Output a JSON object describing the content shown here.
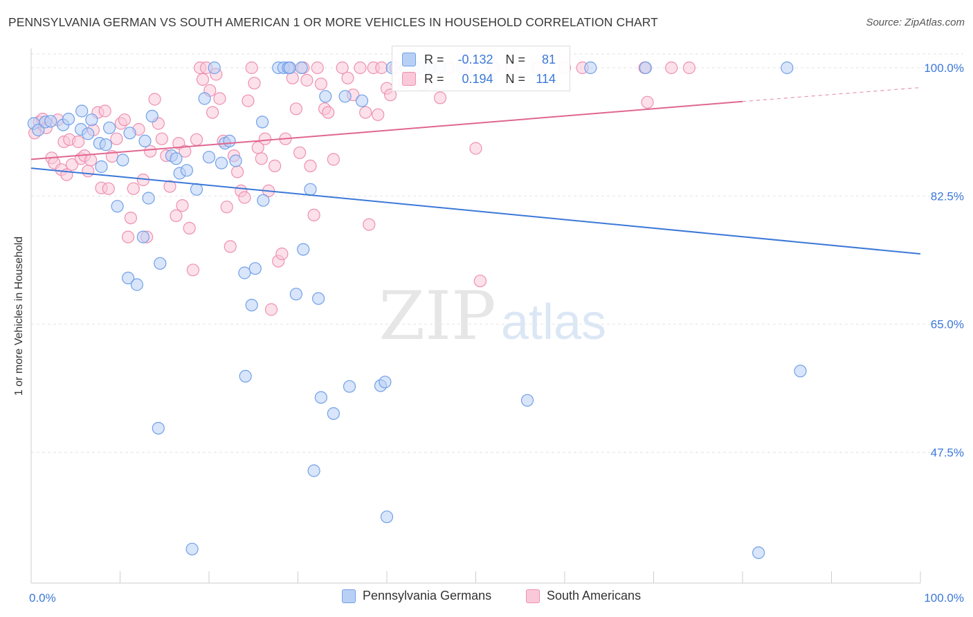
{
  "title": "PENNSYLVANIA GERMAN VS SOUTH AMERICAN 1 OR MORE VEHICLES IN HOUSEHOLD CORRELATION CHART",
  "source": "Source: ZipAtlas.com",
  "watermark": {
    "zip": "ZIP",
    "atlas": "atlas"
  },
  "stats": [
    {
      "r_label": "R =",
      "r_value": "-0.132",
      "n_label": "N =",
      "n_value": "81",
      "color": "#6fa0e8",
      "fill": "#b9d0f5"
    },
    {
      "r_label": "R =",
      "r_value": "0.194",
      "n_label": "N =",
      "n_value": "114",
      "color": "#ee8fb0",
      "fill": "#f9c9d9"
    }
  ],
  "chart_data": {
    "type": "scatter",
    "title": "PENNSYLVANIA GERMAN VS SOUTH AMERICAN 1 OR MORE VEHICLES IN HOUSEHOLD CORRELATION CHART",
    "xlabel": "",
    "ylabel": "1 or more Vehicles in Household",
    "xlim": [
      0,
      100
    ],
    "ylim": [
      30,
      101.5
    ],
    "x_tick_labels": [
      "0.0%",
      "100.0%"
    ],
    "y_ticks": [
      47.5,
      65.0,
      82.5,
      100.0
    ],
    "y_tick_labels": [
      "47.5%",
      "65.0%",
      "82.5%",
      "100.0%"
    ],
    "grid": true,
    "legend_position": "bottom",
    "series": [
      {
        "name": "Pennsylvania Germans",
        "color": "#6fa0e8",
        "fill": "#b9d0f5",
        "trend": {
          "x": [
            0,
            100
          ],
          "y": [
            86.3,
            74.6
          ]
        },
        "points": [
          [
            0.3,
            92.4
          ],
          [
            0.8,
            91.5
          ],
          [
            1.6,
            92.6
          ],
          [
            2.2,
            92.7
          ],
          [
            3.6,
            92.2
          ],
          [
            4.2,
            93.0
          ],
          [
            5.6,
            91.6
          ],
          [
            5.7,
            94.1
          ],
          [
            6.4,
            91.0
          ],
          [
            6.8,
            92.9
          ],
          [
            7.7,
            89.7
          ],
          [
            7.9,
            86.5
          ],
          [
            8.4,
            89.5
          ],
          [
            8.8,
            91.8
          ],
          [
            9.7,
            81.1
          ],
          [
            10.3,
            87.4
          ],
          [
            10.9,
            71.3
          ],
          [
            11.1,
            91.1
          ],
          [
            11.9,
            70.4
          ],
          [
            12.6,
            76.9
          ],
          [
            12.8,
            90.0
          ],
          [
            13.2,
            82.2
          ],
          [
            13.6,
            93.4
          ],
          [
            14.3,
            50.8
          ],
          [
            14.5,
            73.3
          ],
          [
            15.8,
            88.0
          ],
          [
            16.3,
            87.6
          ],
          [
            16.7,
            85.6
          ],
          [
            17.5,
            86.0
          ],
          [
            18.1,
            34.3
          ],
          [
            18.6,
            83.4
          ],
          [
            19.5,
            95.8
          ],
          [
            20.0,
            87.8
          ],
          [
            20.6,
            100.0
          ],
          [
            21.4,
            87.0
          ],
          [
            21.8,
            89.7
          ],
          [
            22.3,
            90.0
          ],
          [
            23.0,
            87.3
          ],
          [
            24.0,
            72.0
          ],
          [
            24.1,
            57.9
          ],
          [
            24.8,
            67.6
          ],
          [
            25.2,
            72.6
          ],
          [
            26.0,
            92.6
          ],
          [
            26.1,
            81.9
          ],
          [
            27.8,
            100.0
          ],
          [
            28.4,
            100.0
          ],
          [
            28.9,
            100.0
          ],
          [
            29.1,
            100.0
          ],
          [
            29.8,
            69.1
          ],
          [
            30.4,
            100.0
          ],
          [
            30.6,
            75.2
          ],
          [
            31.4,
            83.4
          ],
          [
            31.8,
            45.0
          ],
          [
            32.3,
            68.5
          ],
          [
            32.6,
            55.0
          ],
          [
            33.1,
            96.1
          ],
          [
            34.0,
            52.8
          ],
          [
            35.3,
            96.1
          ],
          [
            35.8,
            56.5
          ],
          [
            37.2,
            95.5
          ],
          [
            39.3,
            56.6
          ],
          [
            39.8,
            57.1
          ],
          [
            40.0,
            38.7
          ],
          [
            40.6,
            100.0
          ],
          [
            42.1,
            100.0
          ],
          [
            43.6,
            100.0
          ],
          [
            44.8,
            100.0
          ],
          [
            46.0,
            100.0
          ],
          [
            48.5,
            100.0
          ],
          [
            55.8,
            54.6
          ],
          [
            62.9,
            100.0
          ],
          [
            69.1,
            100.0
          ],
          [
            81.8,
            33.8
          ],
          [
            85.0,
            100.0
          ],
          [
            86.5,
            58.6
          ]
        ]
      },
      {
        "name": "South Americans",
        "color": "#ee8fb0",
        "fill": "#f9c9d9",
        "trend": {
          "x": [
            0,
            80
          ],
          "y": [
            87.5,
            95.4
          ]
        },
        "trend_dashed": {
          "x": [
            80,
            100
          ],
          "y": [
            95.4,
            97.3
          ]
        },
        "points": [
          [
            0.4,
            91.1
          ],
          [
            0.9,
            92.6
          ],
          [
            1.3,
            93.0
          ],
          [
            1.7,
            91.8
          ],
          [
            2.3,
            87.7
          ],
          [
            2.6,
            87.0
          ],
          [
            3.0,
            92.9
          ],
          [
            3.4,
            86.1
          ],
          [
            3.7,
            89.9
          ],
          [
            4.0,
            85.4
          ],
          [
            4.3,
            90.2
          ],
          [
            4.6,
            86.8
          ],
          [
            5.3,
            89.9
          ],
          [
            5.6,
            87.6
          ],
          [
            6.0,
            88.0
          ],
          [
            6.4,
            85.9
          ],
          [
            6.7,
            87.4
          ],
          [
            7.0,
            91.5
          ],
          [
            7.5,
            93.9
          ],
          [
            7.9,
            83.6
          ],
          [
            8.3,
            94.1
          ],
          [
            8.7,
            83.5
          ],
          [
            9.1,
            87.9
          ],
          [
            9.6,
            90.3
          ],
          [
            10.1,
            92.4
          ],
          [
            10.5,
            92.9
          ],
          [
            10.9,
            76.9
          ],
          [
            11.2,
            79.5
          ],
          [
            11.5,
            83.5
          ],
          [
            12.1,
            91.6
          ],
          [
            12.6,
            84.7
          ],
          [
            13.0,
            76.9
          ],
          [
            13.4,
            88.6
          ],
          [
            13.9,
            95.7
          ],
          [
            14.3,
            92.4
          ],
          [
            14.7,
            90.3
          ],
          [
            15.2,
            88.0
          ],
          [
            15.6,
            83.8
          ],
          [
            16.3,
            79.8
          ],
          [
            16.6,
            89.7
          ],
          [
            17.0,
            81.2
          ],
          [
            17.3,
            88.6
          ],
          [
            17.8,
            78.1
          ],
          [
            18.2,
            72.4
          ],
          [
            18.6,
            90.2
          ],
          [
            19.0,
            100.0
          ],
          [
            19.3,
            98.4
          ],
          [
            19.7,
            100.0
          ],
          [
            20.1,
            96.9
          ],
          [
            20.4,
            93.9
          ],
          [
            20.8,
            99.1
          ],
          [
            21.2,
            95.8
          ],
          [
            21.6,
            90.0
          ],
          [
            22.0,
            81.0
          ],
          [
            22.4,
            75.6
          ],
          [
            22.8,
            88.0
          ],
          [
            23.2,
            85.8
          ],
          [
            23.6,
            83.2
          ],
          [
            24.0,
            82.3
          ],
          [
            24.4,
            95.5
          ],
          [
            24.8,
            100.0
          ],
          [
            25.1,
            97.9
          ],
          [
            25.5,
            89.1
          ],
          [
            25.9,
            87.6
          ],
          [
            26.3,
            90.3
          ],
          [
            26.7,
            83.2
          ],
          [
            27.0,
            67.0
          ],
          [
            27.4,
            86.6
          ],
          [
            27.8,
            73.6
          ],
          [
            28.2,
            74.6
          ],
          [
            28.6,
            90.3
          ],
          [
            29.0,
            100.0
          ],
          [
            29.4,
            98.6
          ],
          [
            29.8,
            94.4
          ],
          [
            30.2,
            88.4
          ],
          [
            30.6,
            100.0
          ],
          [
            31.0,
            98.3
          ],
          [
            31.4,
            86.6
          ],
          [
            31.8,
            79.9
          ],
          [
            32.2,
            100.0
          ],
          [
            32.6,
            97.8
          ],
          [
            33.0,
            94.4
          ],
          [
            33.4,
            93.9
          ],
          [
            34.0,
            87.5
          ],
          [
            35.0,
            100.0
          ],
          [
            35.6,
            98.6
          ],
          [
            36.2,
            96.3
          ],
          [
            37.0,
            100.0
          ],
          [
            37.6,
            93.9
          ],
          [
            38.0,
            78.6
          ],
          [
            38.5,
            100.0
          ],
          [
            39.0,
            93.6
          ],
          [
            39.4,
            100.0
          ],
          [
            40.0,
            97.2
          ],
          [
            40.4,
            96.3
          ],
          [
            41.0,
            100.0
          ],
          [
            42.0,
            98.0
          ],
          [
            43.0,
            100.0
          ],
          [
            44.0,
            97.7
          ],
          [
            45.0,
            100.0
          ],
          [
            46.0,
            95.9
          ],
          [
            47.0,
            100.0
          ],
          [
            49.0,
            100.0
          ],
          [
            50.0,
            89.0
          ],
          [
            50.5,
            70.9
          ],
          [
            52.0,
            100.0
          ],
          [
            54.0,
            100.0
          ],
          [
            57.0,
            100.0
          ],
          [
            60.0,
            100.0
          ],
          [
            62.0,
            100.0
          ],
          [
            69.0,
            100.0
          ],
          [
            69.3,
            95.3
          ],
          [
            72.0,
            100.0
          ],
          [
            74.0,
            100.0
          ]
        ]
      }
    ]
  }
}
